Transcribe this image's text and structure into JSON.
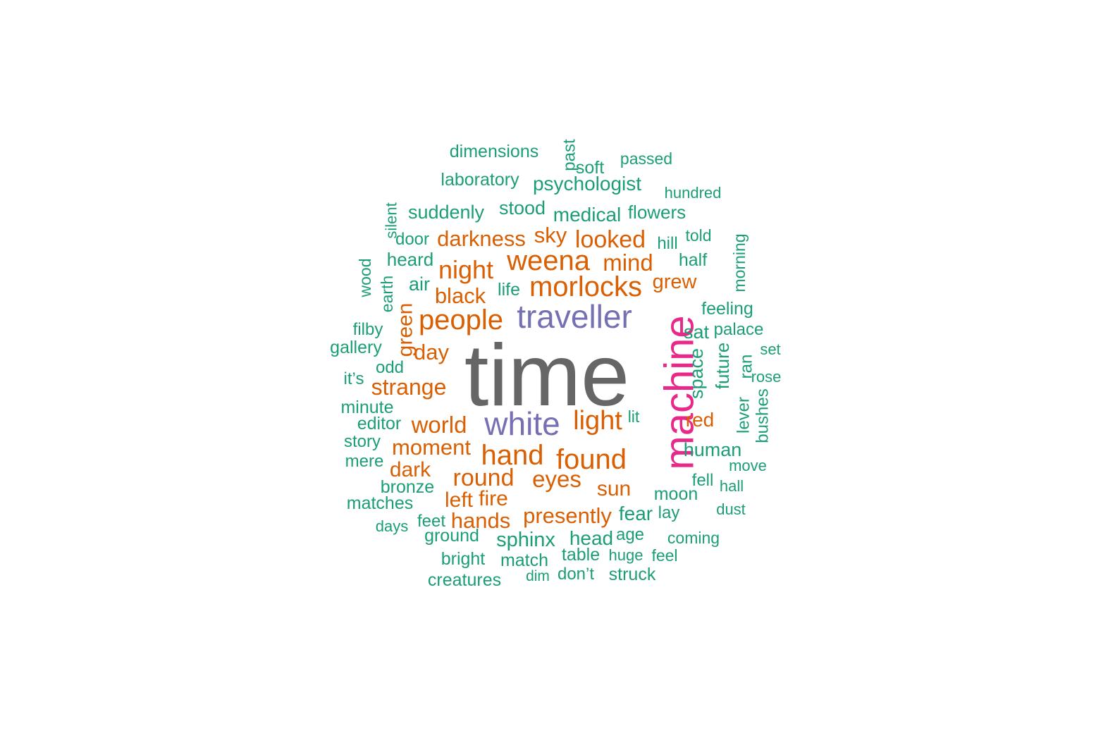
{
  "colors": {
    "gray": "#666666",
    "magenta": "#e7298a",
    "purple": "#7570b3",
    "orange": "#d95f02",
    "teal": "#1b9e77"
  },
  "words": [
    {
      "text": "time",
      "color": "gray"
    },
    {
      "text": "machine",
      "color": "magenta"
    },
    {
      "text": "traveller",
      "color": "purple"
    },
    {
      "text": "white",
      "color": "purple"
    },
    {
      "text": "weena",
      "color": "orange"
    },
    {
      "text": "morlocks",
      "color": "orange"
    },
    {
      "text": "people",
      "color": "orange"
    },
    {
      "text": "hand",
      "color": "orange"
    },
    {
      "text": "found",
      "color": "orange"
    },
    {
      "text": "light",
      "color": "orange"
    },
    {
      "text": "night",
      "color": "orange"
    },
    {
      "text": "looked",
      "color": "orange"
    },
    {
      "text": "darkness",
      "color": "orange"
    },
    {
      "text": "sky",
      "color": "orange"
    },
    {
      "text": "mind",
      "color": "orange"
    },
    {
      "text": "black",
      "color": "orange"
    },
    {
      "text": "grew",
      "color": "orange"
    },
    {
      "text": "day",
      "color": "orange"
    },
    {
      "text": "green",
      "color": "orange"
    },
    {
      "text": "strange",
      "color": "orange"
    },
    {
      "text": "world",
      "color": "orange"
    },
    {
      "text": "moment",
      "color": "orange"
    },
    {
      "text": "dark",
      "color": "orange"
    },
    {
      "text": "round",
      "color": "orange"
    },
    {
      "text": "eyes",
      "color": "orange"
    },
    {
      "text": "sun",
      "color": "orange"
    },
    {
      "text": "left",
      "color": "orange"
    },
    {
      "text": "fire",
      "color": "orange"
    },
    {
      "text": "hands",
      "color": "orange"
    },
    {
      "text": "presently",
      "color": "orange"
    },
    {
      "text": "red",
      "color": "orange"
    },
    {
      "text": "dimensions",
      "color": "teal"
    },
    {
      "text": "past",
      "color": "teal"
    },
    {
      "text": "soft",
      "color": "teal"
    },
    {
      "text": "passed",
      "color": "teal"
    },
    {
      "text": "laboratory",
      "color": "teal"
    },
    {
      "text": "psychologist",
      "color": "teal"
    },
    {
      "text": "hundred",
      "color": "teal"
    },
    {
      "text": "silent",
      "color": "teal"
    },
    {
      "text": "suddenly",
      "color": "teal"
    },
    {
      "text": "stood",
      "color": "teal"
    },
    {
      "text": "medical",
      "color": "teal"
    },
    {
      "text": "flowers",
      "color": "teal"
    },
    {
      "text": "door",
      "color": "teal"
    },
    {
      "text": "hill",
      "color": "teal"
    },
    {
      "text": "told",
      "color": "teal"
    },
    {
      "text": "morning",
      "color": "teal"
    },
    {
      "text": "heard",
      "color": "teal"
    },
    {
      "text": "half",
      "color": "teal"
    },
    {
      "text": "wood",
      "color": "teal"
    },
    {
      "text": "earth",
      "color": "teal"
    },
    {
      "text": "air",
      "color": "teal"
    },
    {
      "text": "life",
      "color": "teal"
    },
    {
      "text": "feeling",
      "color": "teal"
    },
    {
      "text": "filby",
      "color": "teal"
    },
    {
      "text": "sat",
      "color": "teal"
    },
    {
      "text": "palace",
      "color": "teal"
    },
    {
      "text": "gallery",
      "color": "teal"
    },
    {
      "text": "set",
      "color": "teal"
    },
    {
      "text": "odd",
      "color": "teal"
    },
    {
      "text": "space",
      "color": "teal"
    },
    {
      "text": "future",
      "color": "teal"
    },
    {
      "text": "ran",
      "color": "teal"
    },
    {
      "text": "it’s",
      "color": "teal"
    },
    {
      "text": "rose",
      "color": "teal"
    },
    {
      "text": "minute",
      "color": "teal"
    },
    {
      "text": "bushes",
      "color": "teal"
    },
    {
      "text": "lever",
      "color": "teal"
    },
    {
      "text": "editor",
      "color": "teal"
    },
    {
      "text": "lit",
      "color": "teal"
    },
    {
      "text": "story",
      "color": "teal"
    },
    {
      "text": "human",
      "color": "teal"
    },
    {
      "text": "mere",
      "color": "teal"
    },
    {
      "text": "move",
      "color": "teal"
    },
    {
      "text": "fell",
      "color": "teal"
    },
    {
      "text": "bronze",
      "color": "teal"
    },
    {
      "text": "hall",
      "color": "teal"
    },
    {
      "text": "moon",
      "color": "teal"
    },
    {
      "text": "matches",
      "color": "teal"
    },
    {
      "text": "dust",
      "color": "teal"
    },
    {
      "text": "fear",
      "color": "teal"
    },
    {
      "text": "lay",
      "color": "teal"
    },
    {
      "text": "feet",
      "color": "teal"
    },
    {
      "text": "days",
      "color": "teal"
    },
    {
      "text": "ground",
      "color": "teal"
    },
    {
      "text": "sphinx",
      "color": "teal"
    },
    {
      "text": "head",
      "color": "teal"
    },
    {
      "text": "age",
      "color": "teal"
    },
    {
      "text": "coming",
      "color": "teal"
    },
    {
      "text": "bright",
      "color": "teal"
    },
    {
      "text": "match",
      "color": "teal"
    },
    {
      "text": "table",
      "color": "teal"
    },
    {
      "text": "huge",
      "color": "teal"
    },
    {
      "text": "feel",
      "color": "teal"
    },
    {
      "text": "creatures",
      "color": "teal"
    },
    {
      "text": "dim",
      "color": "teal"
    },
    {
      "text": "don’t",
      "color": "teal"
    },
    {
      "text": "struck",
      "color": "teal"
    }
  ]
}
